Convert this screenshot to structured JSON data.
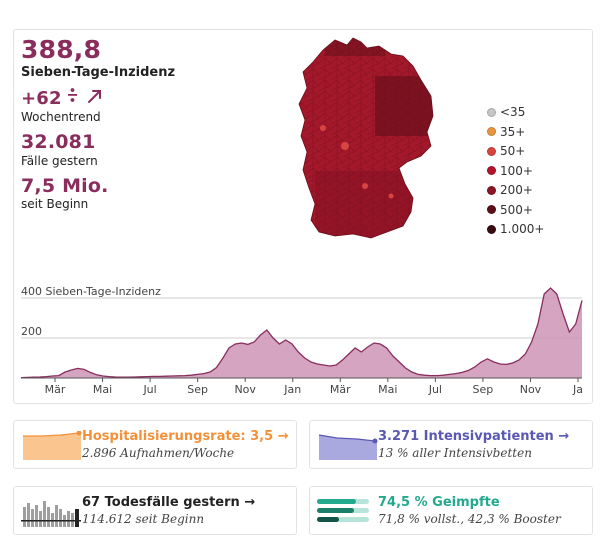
{
  "incidence": {
    "value": "388,8",
    "label": "Sieben-Tage-Inzidenz"
  },
  "trend": {
    "value": "+62",
    "unit": "%",
    "arrow": "↗",
    "label": "Wochentrend"
  },
  "cases_yesterday": {
    "value": "32.081",
    "label": "Fälle gestern"
  },
  "cases_total": {
    "value": "7,5 Mio.",
    "label": "seit Beginn"
  },
  "map": {
    "icon": "germany-map-icon"
  },
  "legend": [
    {
      "label": "<35",
      "color": "#c6c6c6"
    },
    {
      "label": "35+",
      "color": "#e9953f"
    },
    {
      "label": "50+",
      "color": "#d84440"
    },
    {
      "label": "100+",
      "color": "#b3152b"
    },
    {
      "label": "200+",
      "color": "#8c1424"
    },
    {
      "label": "500+",
      "color": "#5d0f17"
    },
    {
      "label": "1.000+",
      "color": "#3a0a10"
    }
  ],
  "chart_data": {
    "type": "area",
    "ylabel": "400 Sieben-Tage-Inzidenz",
    "yticks": [
      {
        "value": 400,
        "label": ""
      },
      {
        "value": 200,
        "label": "200"
      }
    ],
    "ylim": [
      0,
      480
    ],
    "color": "#c98db0",
    "line_color": "#8a2d5d",
    "x_tick_labels": [
      "Mär",
      "Mai",
      "Jul",
      "Sep",
      "Nov",
      "Jan",
      "Mär",
      "Mai",
      "Jul",
      "Sep",
      "Nov",
      "Ja"
    ],
    "values": [
      2,
      3,
      4,
      5,
      7,
      10,
      12,
      30,
      40,
      48,
      43,
      28,
      16,
      10,
      7,
      5,
      4,
      4,
      5,
      6,
      7,
      8,
      8,
      9,
      10,
      11,
      12,
      14,
      18,
      22,
      30,
      52,
      98,
      150,
      170,
      175,
      168,
      180,
      215,
      240,
      200,
      170,
      190,
      170,
      130,
      100,
      80,
      70,
      65,
      60,
      65,
      90,
      120,
      150,
      130,
      155,
      175,
      170,
      150,
      110,
      80,
      50,
      30,
      18,
      14,
      12,
      12,
      14,
      18,
      22,
      28,
      38,
      55,
      80,
      96,
      80,
      70,
      68,
      75,
      90,
      120,
      180,
      270,
      420,
      450,
      420,
      320,
      230,
      270,
      388
    ]
  },
  "cards": {
    "hospital": {
      "title": "Hospitalisierungsrate: 3,5",
      "arrow": "→",
      "sub": "2.896 Aufnahmen/Woche",
      "color": "#f2913a"
    },
    "icu": {
      "title": "3.271 Intensivpatienten",
      "arrow": "→",
      "sub": "13 % aller Intensivbetten",
      "color": "#5959b3"
    },
    "deaths": {
      "title": "67 Todesfälle gestern",
      "arrow": "→",
      "sub": "114.612 seit Beginn",
      "color": "#222222"
    },
    "vaccinated": {
      "title": "74,5 % Geimpfte",
      "sub": "71,8 % vollst., 42,3 % Booster",
      "color": "#22a98e",
      "bars": [
        0.745,
        0.718,
        0.423
      ]
    }
  }
}
